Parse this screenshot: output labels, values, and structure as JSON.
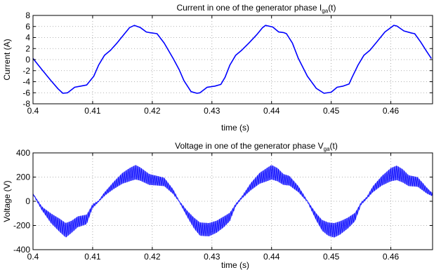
{
  "chart_data": [
    {
      "type": "line",
      "title": {
        "main": "Current in one of the generator phase I",
        "sub": "ga",
        "tail": "(t)"
      },
      "xlabel": "time (s)",
      "ylabel": "Current (A)",
      "xlim": [
        0.4,
        0.467
      ],
      "ylim": [
        -8,
        8
      ],
      "xticks": [
        0.4,
        0.41,
        0.42,
        0.43,
        0.44,
        0.45,
        0.46
      ],
      "xtick_labels": [
        "0.4",
        "0.41",
        "0.42",
        "0.43",
        "0.44",
        "0.45",
        "0.46"
      ],
      "yticks": [
        -8,
        -6,
        -4,
        -2,
        0,
        2,
        4,
        6,
        8
      ],
      "ytick_labels": [
        "-8",
        "-6",
        "-4",
        "-2",
        "0",
        "2",
        "4",
        "6",
        "8"
      ],
      "grid": true,
      "color": "#0000ff",
      "series": [
        {
          "x": [
            0.4,
            0.4015,
            0.403,
            0.4042,
            0.405,
            0.4058,
            0.407,
            0.408,
            0.409,
            0.4102,
            0.411,
            0.412,
            0.413,
            0.414,
            0.4152,
            0.4162,
            0.417,
            0.418,
            0.419,
            0.4195,
            0.4208,
            0.422,
            0.4235,
            0.4245,
            0.4253,
            0.4265,
            0.4275,
            0.428,
            0.4292,
            0.4305,
            0.4315,
            0.4322,
            0.433,
            0.434,
            0.435,
            0.4362,
            0.4375,
            0.4385,
            0.439,
            0.4402,
            0.4412,
            0.442,
            0.4425,
            0.4435,
            0.4445,
            0.446,
            0.4475,
            0.4488,
            0.45,
            0.451,
            0.452,
            0.453,
            0.4535,
            0.4545,
            0.4555,
            0.4565,
            0.4575,
            0.459,
            0.4605,
            0.461,
            0.4622,
            0.4635,
            0.464,
            0.465,
            0.466,
            0.4668
          ],
          "y": [
            0.2,
            -1.8,
            -3.8,
            -5.3,
            -6.1,
            -6.0,
            -5.0,
            -4.8,
            -4.6,
            -3.0,
            -1.0,
            0.8,
            1.7,
            2.9,
            4.5,
            5.8,
            6.2,
            5.8,
            5.0,
            4.9,
            4.7,
            3.0,
            0.2,
            -1.8,
            -3.8,
            -5.8,
            -6.1,
            -6.0,
            -5.0,
            -4.8,
            -4.5,
            -3.2,
            -1.0,
            0.8,
            1.7,
            3.0,
            4.5,
            5.8,
            6.2,
            5.9,
            5.0,
            4.9,
            4.7,
            3.0,
            0.2,
            -3.0,
            -5.2,
            -6.1,
            -5.9,
            -5.0,
            -4.8,
            -4.4,
            -3.2,
            -1.0,
            0.8,
            1.7,
            3.0,
            5.0,
            6.2,
            6.1,
            5.2,
            4.8,
            4.7,
            3.2,
            1.5,
            0.2
          ]
        }
      ]
    },
    {
      "type": "line",
      "title": {
        "main": "Voltage in one of the generator phase V",
        "sub": "ga",
        "tail": "(t)"
      },
      "xlabel": "time (s)",
      "ylabel": "Voltage (V)",
      "xlim": [
        0.4,
        0.467
      ],
      "ylim": [
        -400,
        400
      ],
      "xticks": [
        0.4,
        0.41,
        0.42,
        0.43,
        0.44,
        0.45,
        0.46
      ],
      "xtick_labels": [
        "0.4",
        "0.41",
        "0.42",
        "0.43",
        "0.44",
        "0.45",
        "0.46"
      ],
      "yticks": [
        -400,
        -200,
        0,
        200,
        400
      ],
      "ytick_labels": [
        "-400",
        "-200",
        "0",
        "200",
        "400"
      ],
      "grid": true,
      "color": "#0000ff",
      "series": [
        {
          "name": "",
          "x": [
            0.4,
            0.4015,
            0.403,
            0.4045,
            0.4055,
            0.4065,
            0.4075,
            0.409,
            0.41,
            0.411,
            0.412,
            0.4135,
            0.415,
            0.4162,
            0.4172,
            0.418,
            0.4195,
            0.4208,
            0.422,
            0.4235,
            0.4245,
            0.4258,
            0.427,
            0.428,
            0.4295,
            0.4308,
            0.432,
            0.433,
            0.434,
            0.435,
            0.4365,
            0.438,
            0.4392,
            0.44,
            0.441,
            0.442,
            0.443,
            0.4445,
            0.446,
            0.4475,
            0.4485,
            0.4495,
            0.4505,
            0.4515,
            0.4528,
            0.454,
            0.455,
            0.456,
            0.457,
            0.4585,
            0.46,
            0.461,
            0.462,
            0.463,
            0.4645,
            0.466,
            0.4668
          ],
          "y": [
            60,
            -60,
            -140,
            -200,
            -240,
            -210,
            -170,
            -150,
            -40,
            0,
            60,
            130,
            190,
            220,
            240,
            225,
            180,
            170,
            160,
            80,
            0,
            -100,
            -180,
            -230,
            -235,
            -210,
            -170,
            -130,
            -30,
            30,
            120,
            190,
            220,
            240,
            220,
            180,
            170,
            100,
            0,
            -130,
            -200,
            -230,
            -240,
            -220,
            -180,
            -130,
            -20,
            30,
            100,
            170,
            220,
            235,
            210,
            170,
            160,
            90,
            60
          ],
          "envelope_halfwidth": [
            5,
            15,
            40,
            55,
            60,
            50,
            45,
            40,
            15,
            5,
            15,
            30,
            45,
            55,
            60,
            55,
            45,
            40,
            35,
            20,
            5,
            25,
            45,
            55,
            55,
            50,
            45,
            35,
            10,
            8,
            30,
            45,
            55,
            60,
            55,
            45,
            40,
            25,
            5,
            30,
            45,
            55,
            60,
            55,
            45,
            35,
            10,
            8,
            25,
            40,
            55,
            60,
            55,
            45,
            40,
            25,
            15
          ]
        }
      ]
    }
  ]
}
